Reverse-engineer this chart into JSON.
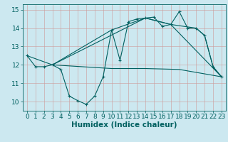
{
  "xlabel": "Humidex (Indice chaleur)",
  "background_color": "#cce8f0",
  "grid_color": "#dddddd",
  "line_color": "#006060",
  "xlim": [
    -0.5,
    23.5
  ],
  "ylim": [
    9.5,
    15.3
  ],
  "yticks": [
    10,
    11,
    12,
    13,
    14,
    15
  ],
  "xticks": [
    0,
    1,
    2,
    3,
    4,
    5,
    6,
    7,
    8,
    9,
    10,
    11,
    12,
    13,
    14,
    15,
    16,
    17,
    18,
    19,
    20,
    21,
    22,
    23
  ],
  "series1_x": [
    0,
    1,
    2,
    3,
    4,
    5,
    6,
    7,
    8,
    9,
    10,
    11,
    12,
    13,
    14,
    15,
    16,
    17,
    18,
    19,
    20,
    21,
    22,
    23
  ],
  "series1_y": [
    12.5,
    11.9,
    11.9,
    12.0,
    11.75,
    10.3,
    10.05,
    9.85,
    10.3,
    11.35,
    13.9,
    12.25,
    14.35,
    14.5,
    14.55,
    14.6,
    14.1,
    14.2,
    14.9,
    14.0,
    14.0,
    13.6,
    11.9,
    11.35
  ],
  "series2_x": [
    0,
    3,
    10,
    14,
    17,
    20,
    21,
    22,
    23
  ],
  "series2_y": [
    12.5,
    12.0,
    13.9,
    14.55,
    14.2,
    14.0,
    13.6,
    11.9,
    11.35
  ],
  "series3_x": [
    3,
    10,
    14,
    18,
    23
  ],
  "series3_y": [
    12.0,
    11.8,
    11.8,
    11.75,
    11.35
  ],
  "series4_x": [
    3,
    14,
    17,
    23
  ],
  "series4_y": [
    12.0,
    14.55,
    14.2,
    11.35
  ],
  "tick_fontsize": 6.5,
  "label_fontsize": 7.5
}
